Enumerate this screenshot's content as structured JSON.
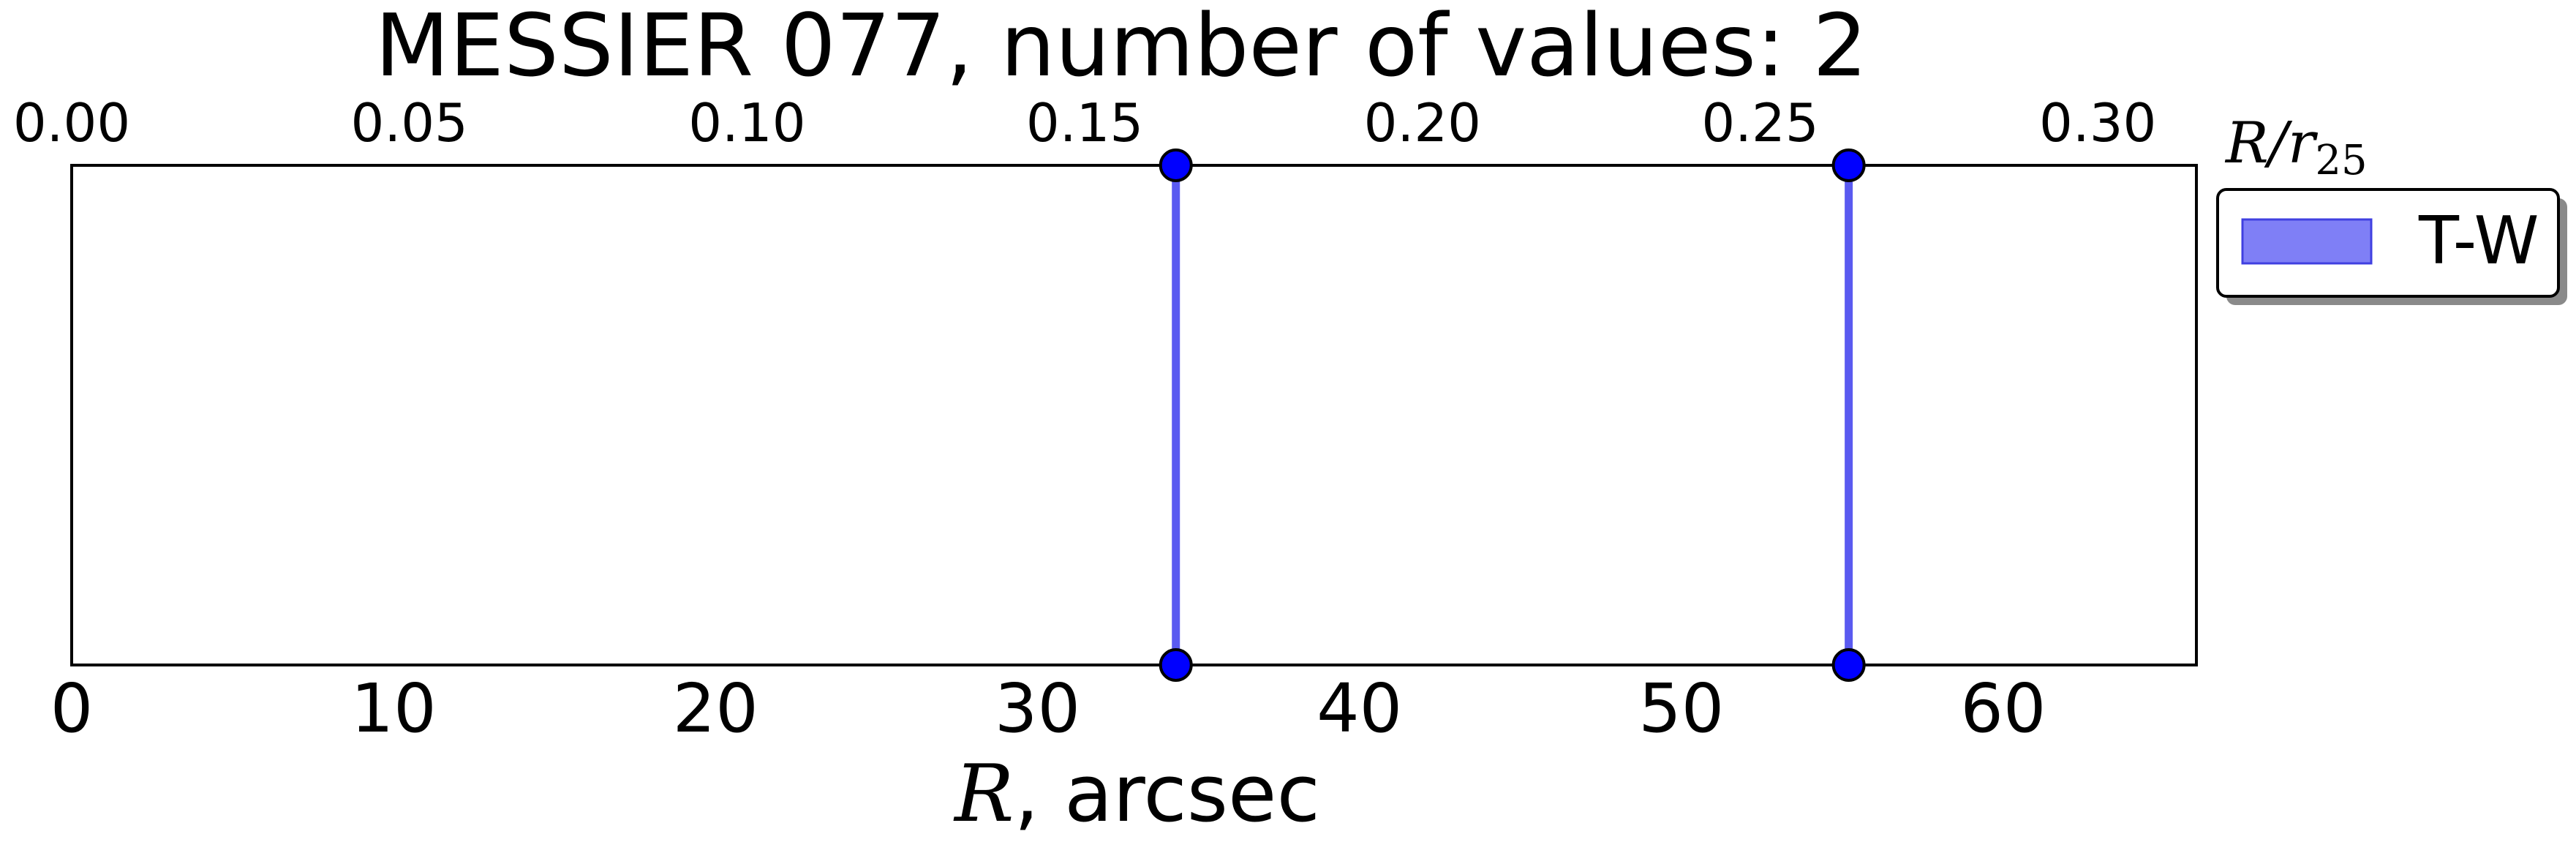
{
  "chart_data": {
    "type": "line",
    "title": "MESSIER 077, number of values: 2",
    "xlabel": {
      "symbol": "R",
      "rest": ", arcsec"
    },
    "top_axis_label": {
      "R": "R",
      "slash": "/",
      "r": "r",
      "sub": "25"
    },
    "xlim": [
      0,
      66
    ],
    "top_xlim": [
      0,
      0.3146
    ],
    "bottom_ticks": [
      "0",
      "10",
      "20",
      "30",
      "40",
      "50",
      "60"
    ],
    "bottom_tick_values": [
      0,
      10,
      20,
      30,
      40,
      50,
      60
    ],
    "top_ticks": [
      "0.00",
      "0.05",
      "0.10",
      "0.15",
      "0.20",
      "0.25",
      "0.30"
    ],
    "top_tick_values": [
      0.0,
      0.05,
      0.1,
      0.15,
      0.2,
      0.25,
      0.3
    ],
    "series": [
      {
        "name": "T-W",
        "x": [
          34.3,
          55.2
        ],
        "color": "#5a5af0",
        "marker_color": "#0000ff"
      }
    ],
    "legend": {
      "placement": "outside-right",
      "entries": [
        "T-W"
      ],
      "swatch_color": "#7f7ff6"
    },
    "grid": false
  }
}
